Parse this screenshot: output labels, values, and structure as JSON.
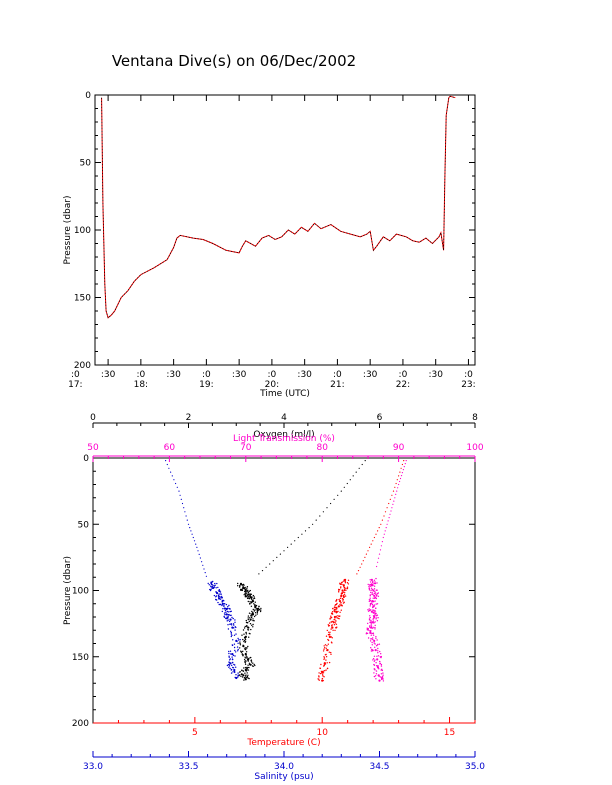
{
  "title": "Ventana Dive(s) on 06/Dec/2002",
  "colors": {
    "axis": "#000000",
    "track": "#000000",
    "track_overlay": "#ff0000",
    "oxygen": "#000000",
    "light": "#ff00cc",
    "temperature": "#ff0000",
    "salinity": "#0000cc"
  },
  "chart_data": [
    {
      "type": "line",
      "name": "dive-track",
      "xlabel": "Time (UTC)",
      "ylabel": "Pressure (dbar)",
      "xlim": [
        17.3,
        23.1
      ],
      "ylim": [
        200,
        0
      ],
      "xtick_labels": [
        ":0\n17:",
        ":30",
        ":0\n18:",
        ":30",
        ":0\n19:",
        ":30",
        ":0\n20:",
        ":30",
        ":0\n21:",
        ":30",
        ":0\n22:",
        ":30",
        ":0\n23:"
      ],
      "xticks": [
        17.0,
        17.5,
        18.0,
        18.5,
        19.0,
        19.5,
        20.0,
        20.5,
        21.0,
        21.5,
        22.0,
        22.5,
        23.0
      ],
      "yticks": [
        0,
        50,
        100,
        150,
        200
      ],
      "series": [
        {
          "x": [
            17.4,
            17.42,
            17.45,
            17.47,
            17.5,
            17.55,
            17.6,
            17.7,
            17.8,
            17.9,
            18.0,
            18.2,
            18.4,
            18.5,
            18.55,
            18.6,
            18.8,
            18.95,
            19.1,
            19.3,
            19.5,
            19.55,
            19.6,
            19.75,
            19.85,
            19.95,
            20.05,
            20.15,
            20.25,
            20.35,
            20.45,
            20.55,
            20.65,
            20.75,
            20.9,
            21.05,
            21.2,
            21.35,
            21.45,
            21.5,
            21.55,
            21.6,
            21.7,
            21.8,
            21.9,
            22.05,
            22.15,
            22.25,
            22.35,
            22.45,
            22.55,
            22.58,
            22.62,
            22.64,
            22.66,
            22.7,
            22.72,
            22.8
          ],
          "y": [
            2,
            80,
            140,
            160,
            165,
            163,
            160,
            150,
            145,
            138,
            133,
            128,
            122,
            113,
            106,
            104,
            106,
            107,
            110,
            115,
            117,
            112,
            108,
            112,
            106,
            104,
            107,
            105,
            100,
            103,
            98,
            101,
            95,
            99,
            96,
            101,
            103,
            105,
            103,
            101,
            115,
            112,
            105,
            108,
            103,
            105,
            108,
            109,
            106,
            110,
            105,
            102,
            115,
            60,
            15,
            2,
            1,
            2
          ]
        }
      ]
    },
    {
      "type": "scatter",
      "name": "profiles",
      "ylabel": "Pressure (dbar)",
      "ylim": [
        200,
        0
      ],
      "yticks": [
        0,
        50,
        100,
        150,
        200
      ],
      "axes": {
        "oxygen": {
          "label": "Oxygen (ml/l)",
          "lim": [
            0,
            8
          ],
          "ticks": [
            0,
            2,
            4,
            6,
            8
          ]
        },
        "light": {
          "label": "Light Transmission (%)",
          "lim": [
            50,
            100
          ],
          "ticks": [
            50,
            60,
            70,
            80,
            90,
            100
          ]
        },
        "temperature": {
          "label": "Temperature (C)",
          "lim": [
            1,
            16
          ],
          "ticks": [
            5,
            10,
            15
          ]
        },
        "salinity": {
          "label": "Salinity (psu)",
          "lim": [
            33.0,
            35.0
          ],
          "ticks": [
            33.0,
            33.5,
            34.0,
            34.5,
            35.0
          ],
          "tick_labels": [
            "33.0",
            "33.5",
            "34.0",
            "34.5",
            "35.0"
          ]
        }
      },
      "series": [
        {
          "name": "Oxygen",
          "axis": "oxygen",
          "x": [
            3.1,
            3.15,
            3.2,
            3.25,
            3.3,
            3.35,
            3.4,
            3.45,
            3.35,
            3.3,
            3.25,
            3.2,
            3.15,
            3.2,
            3.25,
            3.3,
            3.2,
            3.15,
            3.2
          ],
          "y": [
            95,
            98,
            100,
            103,
            105,
            108,
            112,
            115,
            118,
            122,
            128,
            135,
            142,
            148,
            152,
            156,
            160,
            164,
            167
          ]
        },
        {
          "name": "Light Transmission",
          "axis": "light",
          "x": [
            86.5,
            86.6,
            86.7,
            86.8,
            86.6,
            86.7,
            86.5,
            86.8,
            86.6,
            86.4,
            86.3,
            86.8,
            87.0,
            87.2,
            87.3,
            87.4,
            87.5
          ],
          "y": [
            92,
            96,
            100,
            104,
            108,
            112,
            116,
            120,
            124,
            128,
            132,
            138,
            145,
            152,
            158,
            164,
            168
          ]
        },
        {
          "name": "Temperature",
          "axis": "temperature",
          "x": [
            10.9,
            10.85,
            10.8,
            10.75,
            10.7,
            10.65,
            10.55,
            10.5,
            10.45,
            10.4,
            10.3,
            10.2,
            10.1,
            10.0,
            10.0
          ],
          "y": [
            92,
            96,
            100,
            104,
            108,
            112,
            116,
            120,
            124,
            128,
            135,
            145,
            155,
            162,
            168
          ]
        },
        {
          "name": "Salinity",
          "axis": "salinity",
          "x": [
            33.62,
            33.63,
            33.65,
            33.66,
            33.68,
            33.7,
            33.7,
            33.72,
            33.73,
            33.75,
            33.73,
            33.72,
            33.74,
            33.75
          ],
          "y": [
            94,
            98,
            102,
            106,
            110,
            114,
            118,
            122,
            128,
            138,
            148,
            155,
            160,
            166
          ]
        }
      ],
      "descents": [
        {
          "axis": "salinity",
          "x": [
            33.38,
            33.45,
            33.5,
            33.55,
            33.6
          ],
          "y": [
            2,
            25,
            50,
            70,
            92
          ]
        },
        {
          "axis": "temperature",
          "x": [
            13.2,
            12.8,
            12.3,
            11.8,
            11.3
          ],
          "y": [
            2,
            25,
            50,
            70,
            90
          ]
        },
        {
          "axis": "light",
          "x": [
            91.0,
            90.0,
            89.0,
            88.0,
            87.0
          ],
          "y": [
            2,
            20,
            40,
            60,
            85
          ]
        },
        {
          "axis": "oxygen",
          "x": [
            5.7,
            5.2,
            4.6,
            4.0,
            3.4
          ],
          "y": [
            2,
            25,
            50,
            70,
            90
          ]
        }
      ]
    }
  ]
}
